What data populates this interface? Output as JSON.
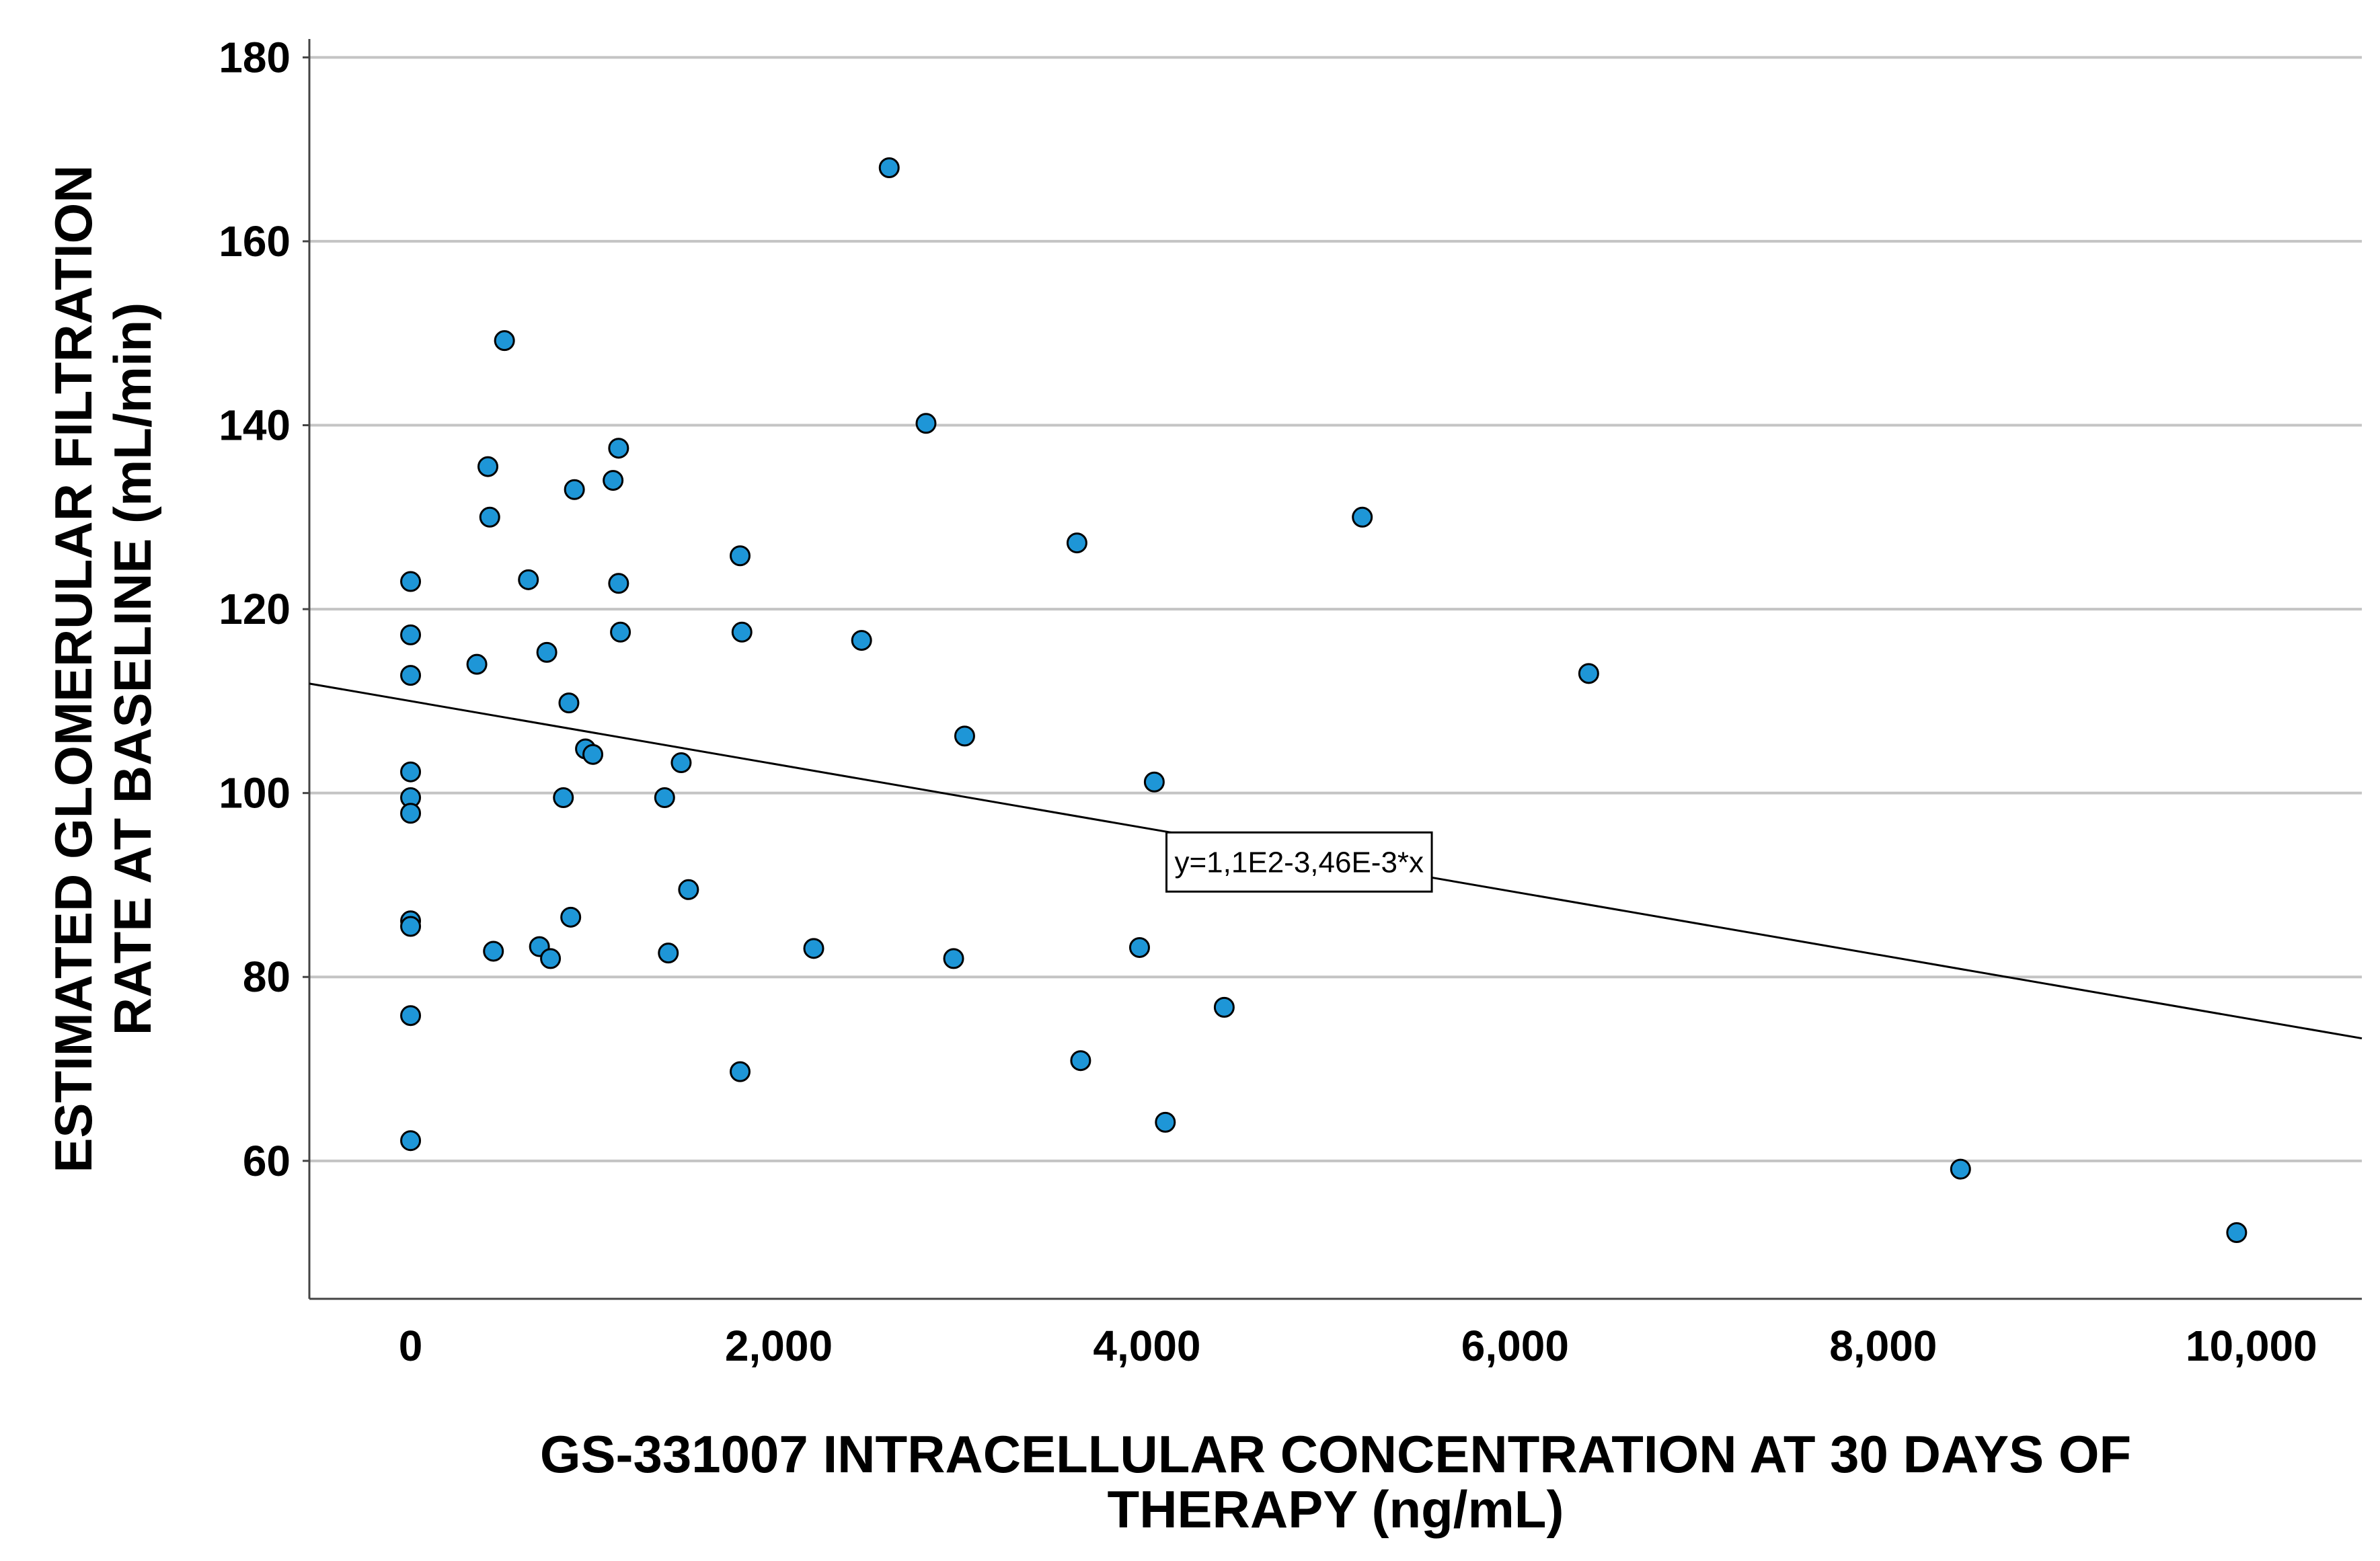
{
  "chart_data": {
    "type": "scatter",
    "xlabel_lines": [
      "GS-331007 INTRACELLULAR CONCENTRATION AT 30 DAYS OF",
      "THERAPY (ng/mL)"
    ],
    "ylabel_lines": [
      "ESTIMATED GLOMERULAR FILTRATION",
      "RATE AT BASELINE (mL/min)"
    ],
    "xlim": [
      -550,
      10600
    ],
    "ylim": [
      45,
      182
    ],
    "x_ticks": [
      0,
      2000,
      4000,
      6000,
      8000,
      10000
    ],
    "x_tick_labels": [
      "0",
      "2,000",
      "4,000",
      "6,000",
      "8,000",
      "10,000"
    ],
    "y_ticks": [
      60,
      80,
      100,
      120,
      140,
      160,
      180
    ],
    "y_tick_labels": [
      "60",
      "80",
      "100",
      "120",
      "140",
      "160",
      "180"
    ],
    "grid": "horizontal",
    "point_color": "#1e96d7",
    "fit_line": {
      "intercept": 110,
      "slope": -0.00346,
      "label": "y=1,1E2-3,46E-3*x"
    },
    "points": [
      {
        "x": 0,
        "y": 123
      },
      {
        "x": 0,
        "y": 117.2
      },
      {
        "x": 0,
        "y": 112.8
      },
      {
        "x": 0,
        "y": 102.3
      },
      {
        "x": 0,
        "y": 99.5
      },
      {
        "x": 0,
        "y": 97.8
      },
      {
        "x": 0,
        "y": 86.1
      },
      {
        "x": 0,
        "y": 85.5
      },
      {
        "x": 0,
        "y": 75.8
      },
      {
        "x": 0,
        "y": 62.2
      },
      {
        "x": 360,
        "y": 114
      },
      {
        "x": 420,
        "y": 135.5
      },
      {
        "x": 430,
        "y": 130
      },
      {
        "x": 450,
        "y": 82.8
      },
      {
        "x": 510,
        "y": 149.2
      },
      {
        "x": 640,
        "y": 123.2
      },
      {
        "x": 700,
        "y": 83.3
      },
      {
        "x": 740,
        "y": 115.3
      },
      {
        "x": 760,
        "y": 82
      },
      {
        "x": 830,
        "y": 99.5
      },
      {
        "x": 860,
        "y": 109.8
      },
      {
        "x": 870,
        "y": 86.5
      },
      {
        "x": 890,
        "y": 133
      },
      {
        "x": 950,
        "y": 104.8
      },
      {
        "x": 990,
        "y": 104.2
      },
      {
        "x": 1100,
        "y": 134
      },
      {
        "x": 1130,
        "y": 137.5
      },
      {
        "x": 1130,
        "y": 122.8
      },
      {
        "x": 1140,
        "y": 117.5
      },
      {
        "x": 1380,
        "y": 99.5
      },
      {
        "x": 1400,
        "y": 82.6
      },
      {
        "x": 1470,
        "y": 103.3
      },
      {
        "x": 1510,
        "y": 89.5
      },
      {
        "x": 1790,
        "y": 125.8
      },
      {
        "x": 1800,
        "y": 117.5
      },
      {
        "x": 1790,
        "y": 69.7
      },
      {
        "x": 2190,
        "y": 83.1
      },
      {
        "x": 2450,
        "y": 116.6
      },
      {
        "x": 2600,
        "y": 168
      },
      {
        "x": 2800,
        "y": 140.2
      },
      {
        "x": 2950,
        "y": 82
      },
      {
        "x": 3010,
        "y": 106.2
      },
      {
        "x": 3620,
        "y": 127.2
      },
      {
        "x": 3640,
        "y": 70.9
      },
      {
        "x": 3960,
        "y": 83.2
      },
      {
        "x": 4040,
        "y": 101.2
      },
      {
        "x": 4100,
        "y": 64.2
      },
      {
        "x": 4420,
        "y": 76.7
      },
      {
        "x": 5170,
        "y": 130
      },
      {
        "x": 6400,
        "y": 113
      },
      {
        "x": 8420,
        "y": 59.1
      },
      {
        "x": 9920,
        "y": 52.2
      }
    ]
  }
}
